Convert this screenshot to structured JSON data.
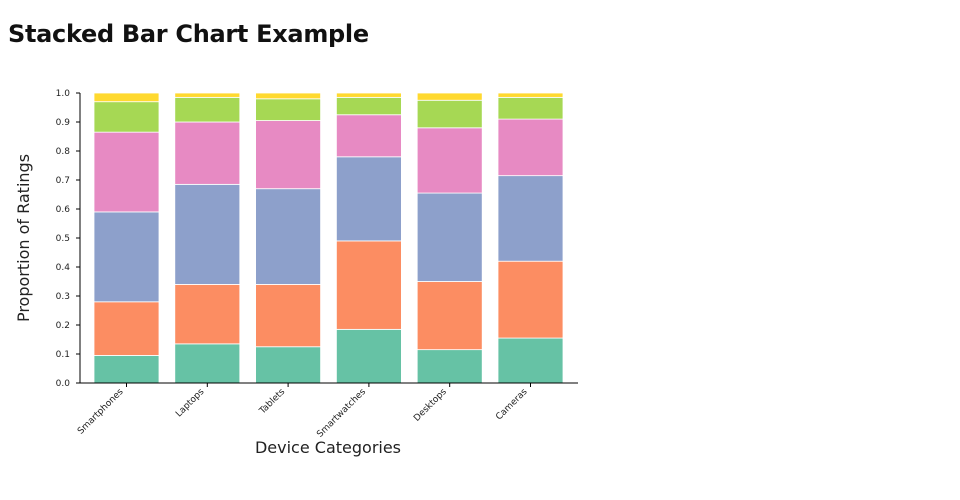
{
  "chart_data": {
    "type": "bar",
    "stacked": true,
    "title": "Stacked Bar Chart Example",
    "xlabel": "Device Categories",
    "ylabel": "Proportion of Ratings",
    "ylim": [
      0,
      1.0
    ],
    "yticks": [
      "0.0",
      "0.1",
      "0.2",
      "0.3",
      "0.4",
      "0.5",
      "0.6",
      "0.7",
      "0.8",
      "0.9",
      "1.0"
    ],
    "categories": [
      "Smartphones",
      "Laptops",
      "Tablets",
      "Smartwatches",
      "Desktops",
      "Cameras"
    ],
    "legend": "none",
    "grid": false,
    "series": [
      {
        "color": "#66c2a5",
        "values": [
          0.095,
          0.135,
          0.125,
          0.185,
          0.115,
          0.155
        ]
      },
      {
        "color": "#fc8d62",
        "values": [
          0.185,
          0.205,
          0.215,
          0.305,
          0.235,
          0.265
        ]
      },
      {
        "color": "#8da0cb",
        "values": [
          0.31,
          0.345,
          0.33,
          0.29,
          0.305,
          0.295
        ]
      },
      {
        "color": "#e78ac3",
        "values": [
          0.275,
          0.215,
          0.235,
          0.145,
          0.225,
          0.195
        ]
      },
      {
        "color": "#a6d854",
        "values": [
          0.105,
          0.085,
          0.075,
          0.06,
          0.095,
          0.075
        ]
      },
      {
        "color": "#ffd92f",
        "values": [
          0.03,
          0.015,
          0.02,
          0.015,
          0.025,
          0.015
        ]
      }
    ]
  }
}
